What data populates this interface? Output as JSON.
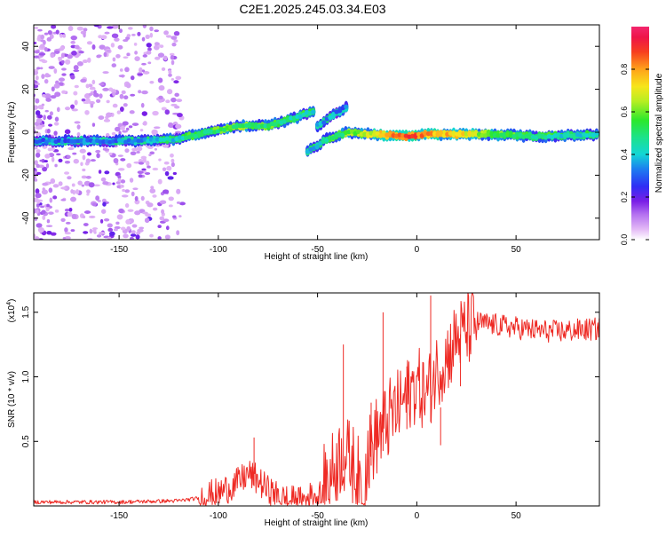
{
  "title": "C2E1.2025.245.03.34.E03",
  "chart_data": [
    {
      "type": "heatmap",
      "xlabel": "Height of straight line (km)",
      "ylabel": "Frequency (Hz)",
      "xlim": [
        -193,
        92
      ],
      "ylim": [
        -50,
        50
      ],
      "x_ticks": [
        -150,
        -100,
        -50,
        0,
        50
      ],
      "y_ticks": [
        -40,
        -20,
        0,
        20,
        40
      ],
      "colorbar": {
        "label": "Normalized spectral amplitude",
        "range": [
          0,
          1
        ],
        "ticks": [
          0.0,
          0.2,
          0.4,
          0.6,
          0.8
        ],
        "tick_labels": [
          "0.0",
          "0.2",
          "0.4",
          "0.6",
          "0.8"
        ]
      },
      "ridges": [
        {
          "name": "main",
          "points": [
            [
              -193,
              -4,
              0.3
            ],
            [
              -160,
              -4,
              0.32
            ],
            [
              -140,
              -4,
              0.35
            ],
            [
              -120,
              -3,
              0.42
            ],
            [
              -105,
              0,
              0.5
            ],
            [
              -90,
              3,
              0.55
            ],
            [
              -75,
              3,
              0.5
            ],
            [
              -60,
              7,
              0.45
            ],
            [
              -52,
              10,
              0.4
            ]
          ]
        },
        {
          "name": "lower_branch",
          "points": [
            [
              -55,
              -9,
              0.35
            ],
            [
              -45,
              -3,
              0.45
            ],
            [
              -35,
              0,
              0.55
            ],
            [
              -20,
              -1,
              0.7
            ],
            [
              -5,
              -2,
              0.9
            ],
            [
              5,
              -1,
              0.8
            ],
            [
              20,
              -1,
              0.75
            ],
            [
              40,
              -1,
              0.55
            ],
            [
              60,
              -2,
              0.45
            ],
            [
              92,
              -1,
              0.4
            ]
          ]
        },
        {
          "name": "upper_branch",
          "points": [
            [
              -50,
              3,
              0.35
            ],
            [
              -42,
              8,
              0.35
            ],
            [
              -35,
              12,
              0.3
            ]
          ]
        }
      ]
    },
    {
      "type": "line",
      "xlabel": "Height of straight line (km)",
      "ylabel": "SNR (10 * v/v)",
      "y_scale_label": "(x10",
      "y_scale_exponent": "4",
      "y_scale_suffix": ")",
      "xlim": [
        -193,
        92
      ],
      "ylim": [
        0,
        1.65
      ],
      "x_ticks": [
        -150,
        -100,
        -50,
        0,
        50
      ],
      "y_ticks": [
        0.5,
        1.0,
        1.5
      ],
      "color": "#ee2a24",
      "series": [
        {
          "name": "SNR",
          "anchors": [
            [
              -193,
              0.03
            ],
            [
              -150,
              0.03
            ],
            [
              -120,
              0.04
            ],
            [
              -110,
              0.06
            ],
            [
              -100,
              0.1
            ],
            [
              -90,
              0.18
            ],
            [
              -85,
              0.25
            ],
            [
              -80,
              0.2
            ],
            [
              -75,
              0.12
            ],
            [
              -68,
              0.05
            ],
            [
              -58,
              0.03
            ],
            [
              -50,
              0.1
            ],
            [
              -43,
              0.25
            ],
            [
              -38,
              0.4
            ],
            [
              -33,
              0.35
            ],
            [
              -28,
              0.18
            ],
            [
              -22,
              0.5
            ],
            [
              -15,
              0.65
            ],
            [
              -10,
              0.75
            ],
            [
              -5,
              0.85
            ],
            [
              0,
              0.95
            ],
            [
              5,
              0.85
            ],
            [
              10,
              1.05
            ],
            [
              15,
              1.15
            ],
            [
              20,
              1.3
            ],
            [
              30,
              1.42
            ],
            [
              40,
              1.4
            ],
            [
              50,
              1.38
            ],
            [
              60,
              1.36
            ],
            [
              70,
              1.35
            ],
            [
              80,
              1.36
            ],
            [
              92,
              1.37
            ]
          ]
        }
      ],
      "peaks": [
        [
          -82,
          0.53
        ],
        [
          -37,
          1.25
        ],
        [
          -23,
          0.8
        ],
        [
          -17,
          1.5
        ],
        [
          -5,
          1.08
        ],
        [
          7,
          1.63
        ],
        [
          12,
          0.47
        ],
        [
          22,
          1.33
        ]
      ]
    }
  ]
}
